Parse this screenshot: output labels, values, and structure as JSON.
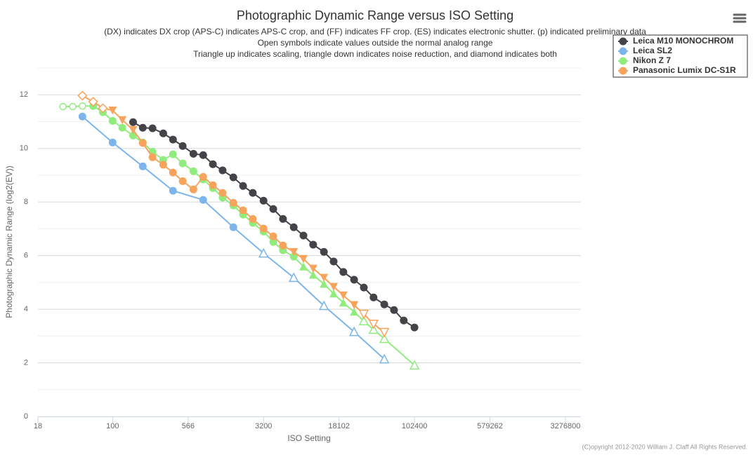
{
  "chart_data": {
    "type": "line",
    "title": "Photographic Dynamic Range versus ISO Setting",
    "subtitle": [
      "(DX) indicates DX crop (APS-C) indicates APS-C crop, and (FF) indicates FF crop. (ES) indicates electronic shutter. (p) indicated preliminary data",
      "Open symbols indicate values outside the normal analog range",
      "Triangle up indicates scaling, triangle down indicates noise reduction, and diamond indicates both"
    ],
    "x_label": "ISO Setting",
    "y_label": "Photographic Dynamic Range (log2(EV))",
    "x_scale": "log",
    "xlim": [
      18,
      4676000
    ],
    "xticks": [
      18,
      100,
      566,
      3200,
      18102,
      102400,
      579262,
      3276800
    ],
    "ylim": [
      0,
      13
    ],
    "yticks": [
      0,
      2,
      4,
      6,
      8,
      10,
      12
    ],
    "minor_yticks": [
      1,
      3,
      5,
      7,
      9,
      11,
      13
    ],
    "grid": true,
    "legend": "top-right",
    "credit": "(C)opyright 2012-2020 William J. Claff All Rights Reserved.",
    "series": [
      {
        "name": "Leica M10 MONOCHROM",
        "color": "#434348",
        "x": [
          160,
          200,
          250,
          320,
          400,
          500,
          640,
          800,
          1000,
          1250,
          1600,
          2000,
          2500,
          3200,
          4000,
          5000,
          6400,
          8000,
          10000,
          12800,
          16000,
          20000,
          25600,
          32000,
          40000,
          51200,
          64000,
          80000,
          102400
        ],
        "values": [
          10.98,
          10.77,
          10.75,
          10.56,
          10.33,
          10.09,
          9.8,
          9.75,
          9.41,
          9.18,
          8.92,
          8.6,
          8.34,
          8.05,
          7.74,
          7.37,
          7.06,
          6.75,
          6.41,
          6.14,
          5.78,
          5.39,
          5.1,
          4.81,
          4.44,
          4.18,
          3.97,
          3.58,
          3.32
        ],
        "symbols": [
          "circle",
          "circle",
          "circle",
          "circle",
          "circle",
          "circle",
          "circle",
          "circle",
          "circle",
          "circle",
          "circle",
          "circle",
          "circle",
          "circle",
          "circle",
          "circle",
          "circle",
          "circle",
          "circle",
          "circle",
          "circle",
          "circle",
          "circle",
          "circle",
          "circle",
          "circle",
          "circle",
          "circle",
          "circle"
        ]
      },
      {
        "name": "Leica SL2",
        "color": "#7cb5ec",
        "x": [
          50,
          100,
          200,
          400,
          800,
          1600,
          3200,
          6400,
          12800,
          25600,
          51200
        ],
        "values": [
          11.19,
          10.22,
          9.33,
          8.42,
          8.08,
          7.06,
          6.09,
          5.18,
          4.13,
          3.16,
          2.14
        ],
        "symbols": [
          "circle",
          "circle",
          "circle",
          "circle",
          "circle",
          "circle",
          "triangle-up-open",
          "triangle-up-open",
          "triangle-up-open",
          "triangle-up-open",
          "triangle-up-open"
        ]
      },
      {
        "name": "Nikon Z 7",
        "color": "#90ed7d",
        "x": [
          32,
          40,
          50,
          64,
          80,
          100,
          125,
          160,
          200,
          250,
          320,
          400,
          500,
          640,
          800,
          1000,
          1250,
          1600,
          2000,
          2500,
          3200,
          4000,
          5000,
          6400,
          8000,
          10000,
          12800,
          16000,
          20000,
          25600,
          32000,
          40000,
          51200,
          102400
        ],
        "values": [
          11.56,
          11.56,
          11.58,
          11.58,
          11.35,
          11.03,
          10.77,
          10.48,
          10.22,
          9.88,
          9.57,
          9.78,
          9.44,
          9.15,
          8.84,
          8.52,
          8.16,
          7.87,
          7.53,
          7.22,
          6.9,
          6.51,
          6.2,
          5.96,
          5.59,
          5.28,
          4.94,
          4.58,
          4.24,
          3.9,
          3.56,
          3.24,
          2.9,
          1.91
        ],
        "symbols": [
          "circle-open",
          "circle-open",
          "circle-open",
          "circle",
          "circle",
          "circle",
          "circle",
          "circle",
          "circle",
          "circle",
          "circle",
          "circle",
          "circle",
          "circle",
          "circle",
          "circle",
          "circle",
          "circle",
          "circle",
          "circle",
          "circle",
          "circle",
          "circle",
          "circle",
          "triangle-up",
          "triangle-up",
          "triangle-up",
          "triangle-up",
          "triangle-up",
          "triangle-up",
          "triangle-up-open",
          "triangle-up-open",
          "triangle-up-open",
          "triangle-up-open"
        ]
      },
      {
        "name": "Panasonic Lumix DC-S1R",
        "color": "#f7a35c",
        "x": [
          50,
          64,
          80,
          100,
          125,
          160,
          200,
          250,
          320,
          400,
          500,
          640,
          800,
          1000,
          1250,
          1600,
          2000,
          2500,
          3200,
          4000,
          5000,
          6400,
          8000,
          10000,
          12800,
          16000,
          20000,
          25600,
          32000,
          40000,
          51200
        ],
        "values": [
          11.97,
          11.74,
          11.5,
          11.42,
          11.06,
          10.69,
          10.2,
          9.67,
          9.39,
          9.1,
          8.78,
          8.47,
          8.94,
          8.63,
          8.34,
          7.97,
          7.69,
          7.37,
          7.01,
          6.72,
          6.38,
          6.14,
          5.88,
          5.52,
          5.18,
          4.84,
          4.52,
          4.16,
          3.82,
          3.45,
          3.14
        ],
        "symbols": [
          "diamond-open",
          "diamond-open",
          "diamond-open",
          "triangle-down",
          "triangle-down",
          "triangle-down",
          "circle",
          "circle",
          "circle",
          "circle",
          "circle",
          "circle",
          "circle",
          "circle",
          "circle",
          "circle",
          "circle",
          "circle",
          "circle",
          "circle",
          "circle",
          "triangle-down",
          "triangle-down",
          "triangle-down",
          "triangle-down",
          "triangle-down",
          "triangle-down",
          "triangle-down",
          "triangle-down-open",
          "triangle-down-open",
          "triangle-down-open"
        ]
      }
    ]
  }
}
